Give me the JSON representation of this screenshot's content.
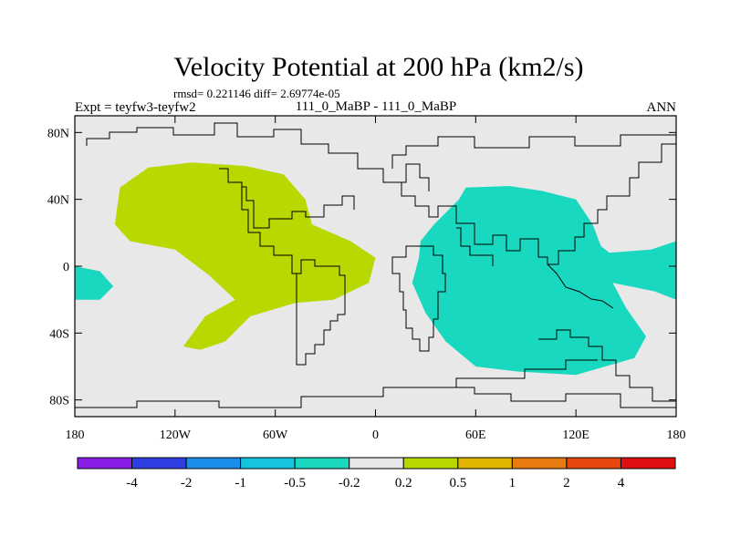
{
  "chart_data": {
    "type": "contour-map",
    "title": "Velocity Potential at 200 hPa (km2/s)",
    "stats": "rmsd= 0.221146 diff= 2.69774e-05",
    "left_label": "Expt = teyfw3-teyfw2",
    "center_label": "111_0_MaBP - 111_0_MaBP",
    "right_label": "ANN",
    "x_ticks": [
      "180",
      "120W",
      "60W",
      "0",
      "60E",
      "120E",
      "180"
    ],
    "x_tick_values": [
      -180,
      -120,
      -60,
      0,
      60,
      120,
      180
    ],
    "y_ticks": [
      "80N",
      "40N",
      "0",
      "40S",
      "80S"
    ],
    "y_tick_values": [
      80,
      40,
      0,
      -40,
      -80
    ],
    "xlim": [
      -180,
      180
    ],
    "ylim": [
      -90,
      90
    ],
    "colorbar": {
      "labels": [
        "-4",
        "-2",
        "-1",
        "-0.5",
        "-0.2",
        "0.2",
        "0.5",
        "1",
        "2",
        "4"
      ],
      "colors": [
        "#8a1ee8",
        "#2f3ee0",
        "#1a8ee8",
        "#16c4e0",
        "#18d8c0",
        "#e8e8e8",
        "#b8d800",
        "#e0b400",
        "#e87c10",
        "#e84810",
        "#e01010"
      ]
    },
    "regions": [
      {
        "name": "positive-anomaly-americas",
        "level": "0.2 to 0.5",
        "color": "#b8d800",
        "lonlat": [
          [
            -153,
            47
          ],
          [
            -136,
            59
          ],
          [
            -110,
            62
          ],
          [
            -78,
            60
          ],
          [
            -55,
            55
          ],
          [
            -42,
            40
          ],
          [
            -38,
            25
          ],
          [
            -15,
            15
          ],
          [
            0,
            5
          ],
          [
            -4,
            -10
          ],
          [
            -25,
            -20
          ],
          [
            -48,
            -22
          ],
          [
            -75,
            -30
          ],
          [
            -90,
            -45
          ],
          [
            -105,
            -50
          ],
          [
            -115,
            -48
          ],
          [
            -102,
            -30
          ],
          [
            -84,
            -20
          ],
          [
            -100,
            -5
          ],
          [
            -120,
            10
          ],
          [
            -147,
            15
          ],
          [
            -156,
            25
          ]
        ]
      },
      {
        "name": "negative-anomaly-eastern",
        "level": "-0.5 to -0.2",
        "color": "#18d8c0",
        "lonlat": [
          [
            27,
            15
          ],
          [
            35,
            25
          ],
          [
            50,
            40
          ],
          [
            54,
            47
          ],
          [
            80,
            48
          ],
          [
            100,
            45
          ],
          [
            120,
            40
          ],
          [
            130,
            25
          ],
          [
            135,
            12
          ],
          [
            140,
            8
          ],
          [
            165,
            10
          ],
          [
            180,
            15
          ],
          [
            180,
            -20
          ],
          [
            167,
            -15
          ],
          [
            142,
            -10
          ],
          [
            150,
            -25
          ],
          [
            162,
            -42
          ],
          [
            155,
            -55
          ],
          [
            120,
            -65
          ],
          [
            85,
            -63
          ],
          [
            60,
            -60
          ],
          [
            42,
            -45
          ],
          [
            30,
            -28
          ],
          [
            22,
            -10
          ],
          [
            26,
            5
          ]
        ]
      },
      {
        "name": "negative-anomaly-dateline",
        "level": "-0.5 to -0.2",
        "color": "#18d8c0",
        "lonlat": [
          [
            -180,
            0
          ],
          [
            -165,
            -3
          ],
          [
            -157,
            -12
          ],
          [
            -165,
            -20
          ],
          [
            -180,
            -20
          ]
        ]
      }
    ],
    "coastline_color": "#000000",
    "background_color": "#e8e8e8"
  }
}
